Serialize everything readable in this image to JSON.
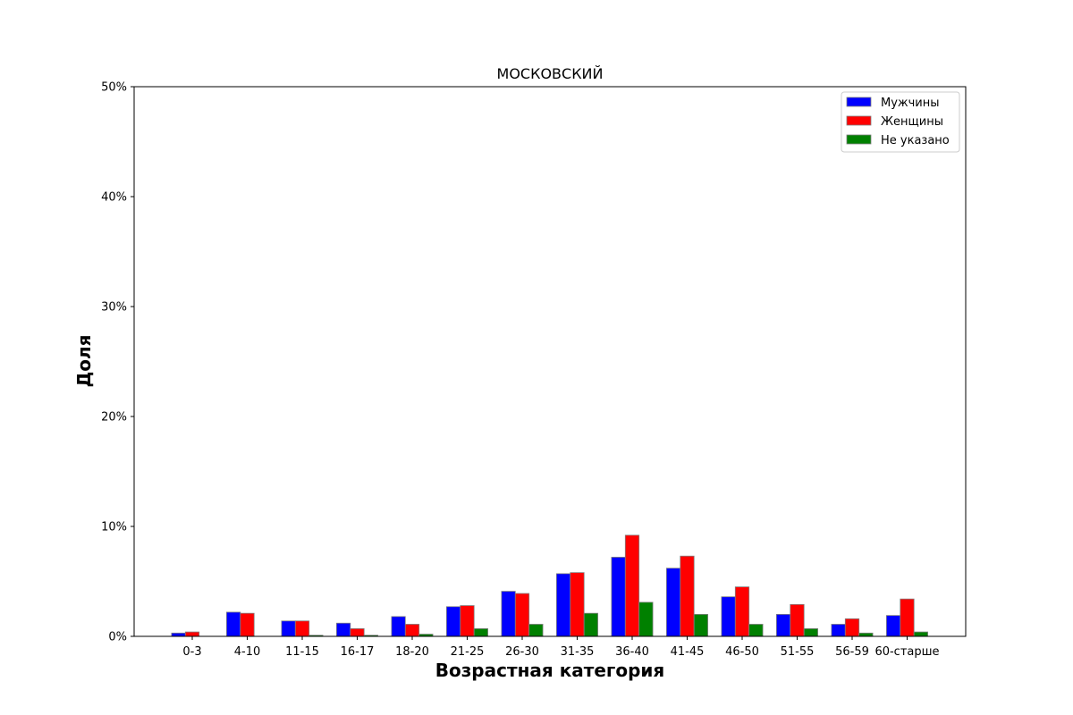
{
  "chart_data": {
    "type": "bar",
    "title": "МОСКОВСКИЙ",
    "xlabel": "Возрастная категория",
    "ylabel": "Доля",
    "categories": [
      "0-3",
      "4-10",
      "11-15",
      "16-17",
      "18-20",
      "21-25",
      "26-30",
      "31-35",
      "36-40",
      "41-45",
      "46-50",
      "51-55",
      "56-59",
      "60-старше"
    ],
    "ylim": [
      0,
      50
    ],
    "yticks": [
      0,
      10,
      20,
      30,
      40,
      50
    ],
    "ytick_labels": [
      "0%",
      "10%",
      "20%",
      "30%",
      "40%",
      "50%"
    ],
    "grid": false,
    "legend_position": "top-right",
    "series": [
      {
        "name": "Мужчины",
        "color": "#0000ff",
        "values": [
          0.3,
          2.2,
          1.4,
          1.2,
          1.8,
          2.7,
          4.1,
          5.7,
          7.2,
          6.2,
          3.6,
          2.0,
          1.1,
          1.9
        ]
      },
      {
        "name": "Женщины",
        "color": "#ff0000",
        "values": [
          0.4,
          2.1,
          1.4,
          0.7,
          1.1,
          2.8,
          3.9,
          5.8,
          9.2,
          7.3,
          4.5,
          2.9,
          1.6,
          3.4
        ]
      },
      {
        "name": "Не указано",
        "color": "#008000",
        "values": [
          0.0,
          0.0,
          0.1,
          0.1,
          0.2,
          0.7,
          1.1,
          2.1,
          3.1,
          2.0,
          1.1,
          0.7,
          0.3,
          0.4
        ]
      }
    ]
  }
}
